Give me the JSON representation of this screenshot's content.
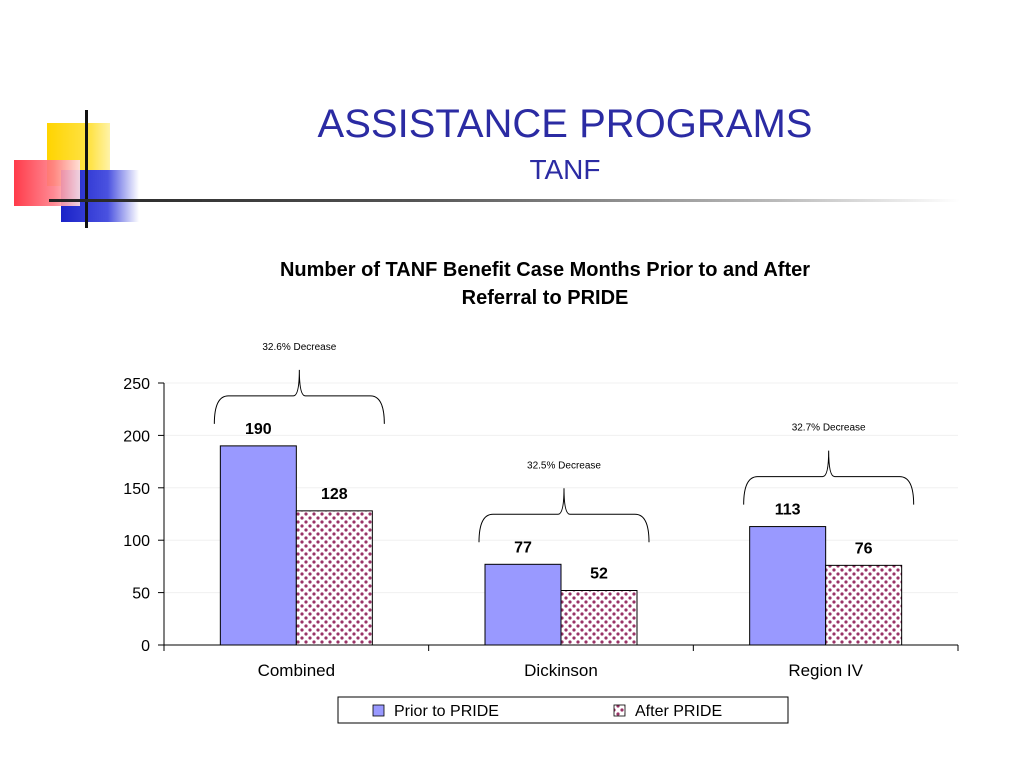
{
  "slide": {
    "title": "ASSISTANCE PROGRAMS",
    "subtitle": "TANF"
  },
  "colors": {
    "title": "#2b2ba3",
    "prior": "#9999ff",
    "after_dot": "#993366",
    "after_bg": "#ffffff",
    "axis": "#000000"
  },
  "chart_data": {
    "type": "bar",
    "title": "Number of TANF Benefit Case Months Prior to and After Referral to PRIDE",
    "categories": [
      "Combined",
      "Dickinson",
      "Region IV"
    ],
    "series": [
      {
        "name": "Prior to PRIDE",
        "values": [
          190,
          77,
          113
        ]
      },
      {
        "name": "After PRIDE",
        "values": [
          128,
          52,
          76
        ]
      }
    ],
    "ylim": [
      0,
      250
    ],
    "yticks": [
      0,
      50,
      100,
      150,
      200,
      250
    ],
    "xlabel": "",
    "ylabel": "",
    "grid": true,
    "legend": "bottom",
    "annotations": [
      "32.6% Decrease",
      "32.5% Decrease",
      "32.7% Decrease"
    ]
  }
}
